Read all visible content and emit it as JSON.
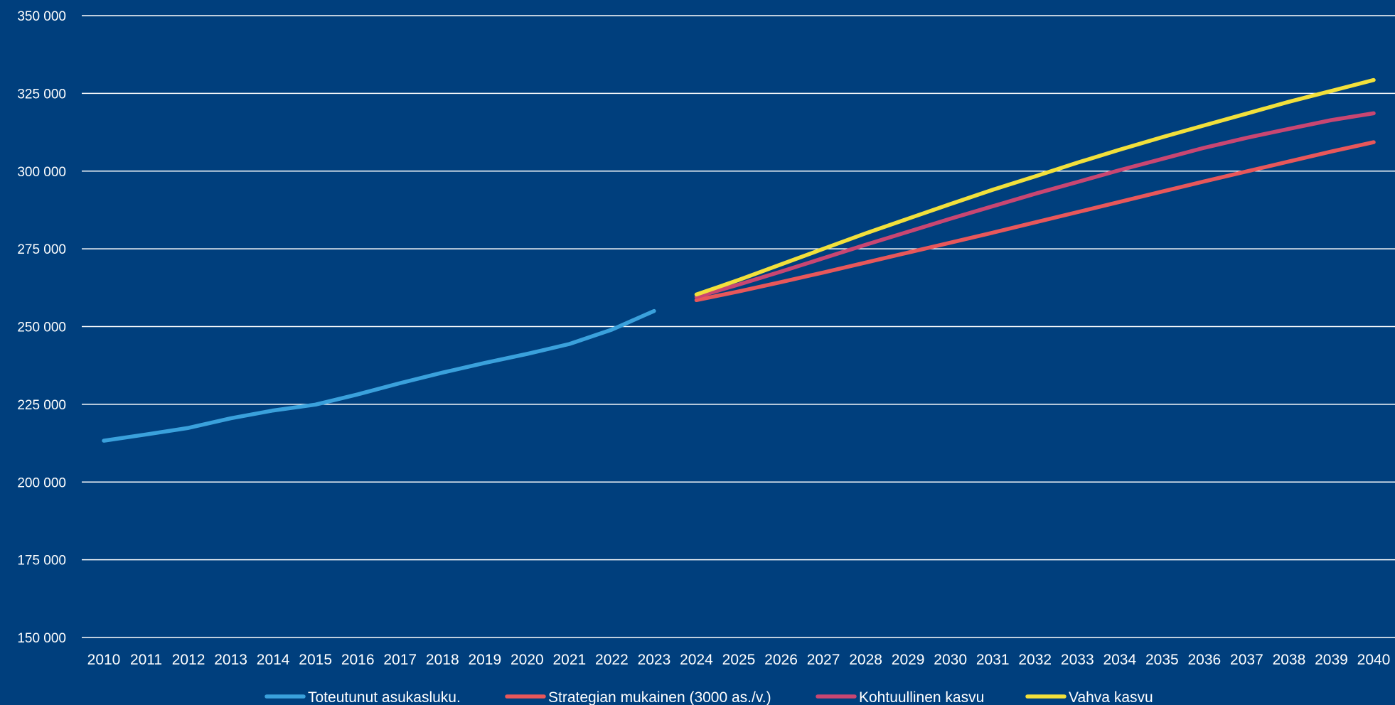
{
  "colors": {
    "background": "#003f7d",
    "grid": "#ffffff",
    "text": "#ffffff"
  },
  "chart_data": {
    "type": "line",
    "title": "",
    "xlabel": "",
    "ylabel": "",
    "grid": true,
    "legend_position": "bottom",
    "ylim": [
      150000,
      350000
    ],
    "yticks": [
      150000,
      175000,
      200000,
      225000,
      250000,
      275000,
      300000,
      325000,
      350000
    ],
    "ytick_labels": [
      "150 000",
      "175 000",
      "200 000",
      "225 000",
      "250 000",
      "275 000",
      "300 000",
      "325 000",
      "350 000"
    ],
    "categories": [
      "2010",
      "2011",
      "2012",
      "2013",
      "2014",
      "2015",
      "2016",
      "2017",
      "2018",
      "2019",
      "2020",
      "2021",
      "2022",
      "2023",
      "2024",
      "2025",
      "2026",
      "2027",
      "2028",
      "2029",
      "2030",
      "2031",
      "2032",
      "2033",
      "2034",
      "2035",
      "2036",
      "2037",
      "2038",
      "2039",
      "2040"
    ],
    "series": [
      {
        "name": "Toteutunut asukasluku.",
        "color": "#3aa1dc",
        "values": [
          213300,
          215300,
          217400,
          220500,
          223000,
          224900,
          228200,
          231800,
          235200,
          238300,
          241200,
          244400,
          249000,
          255000,
          null,
          null,
          null,
          null,
          null,
          null,
          null,
          null,
          null,
          null,
          null,
          null,
          null,
          null,
          null,
          null,
          null
        ]
      },
      {
        "name": "Strategian mukainen (3000 as./v.)",
        "color": "#e8575a",
        "values": [
          null,
          null,
          null,
          null,
          null,
          null,
          null,
          null,
          null,
          null,
          null,
          null,
          null,
          null,
          258500,
          261300,
          264300,
          267400,
          270600,
          273800,
          277000,
          280200,
          283500,
          286800,
          290100,
          293400,
          296700,
          299900,
          303100,
          306300,
          309300
        ]
      },
      {
        "name": "Kohtuullinen kasvu",
        "color": "#c94672",
        "values": [
          null,
          null,
          null,
          null,
          null,
          null,
          null,
          null,
          null,
          null,
          null,
          null,
          null,
          null,
          259500,
          263500,
          267700,
          272000,
          276300,
          280500,
          284700,
          288700,
          292700,
          296500,
          300300,
          303900,
          307500,
          310700,
          313600,
          316400,
          318600
        ]
      },
      {
        "name": "Vahva kasvu",
        "color": "#f2e03b",
        "values": [
          null,
          null,
          null,
          null,
          null,
          null,
          null,
          null,
          null,
          null,
          null,
          null,
          null,
          null,
          260300,
          265000,
          270000,
          275000,
          280000,
          284700,
          289400,
          294000,
          298300,
          302700,
          306900,
          310900,
          314700,
          318500,
          322300,
          325800,
          329300
        ]
      }
    ]
  }
}
